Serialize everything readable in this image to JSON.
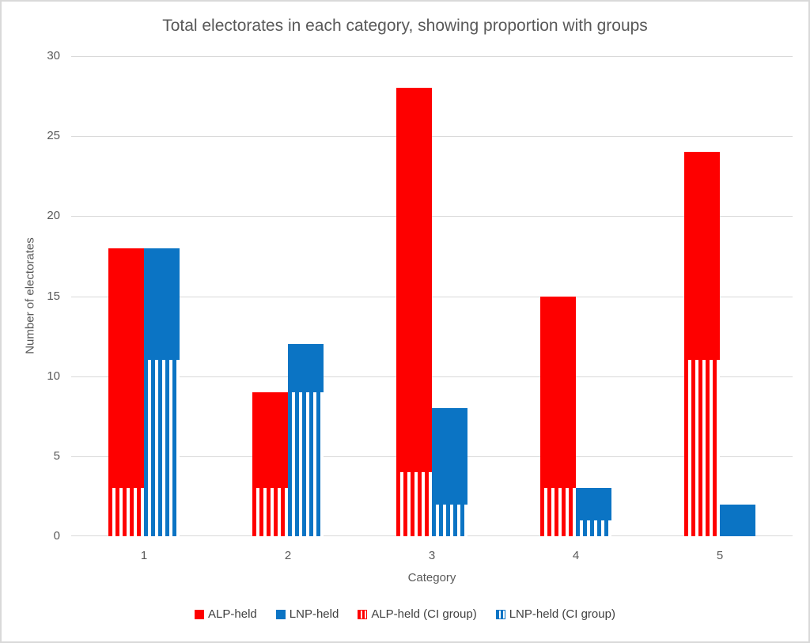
{
  "chart_data": {
    "type": "bar",
    "title": "Total electorates in each category, showing proportion with groups",
    "xlabel": "Category",
    "ylabel": "Number of electorates",
    "categories": [
      "1",
      "2",
      "3",
      "4",
      "5"
    ],
    "series": [
      {
        "name": "ALP-held",
        "style": "solid",
        "color": "#fe0000",
        "values": [
          18,
          9,
          28,
          15,
          24
        ]
      },
      {
        "name": "LNP-held",
        "style": "solid",
        "color": "#0b74c4",
        "values": [
          18,
          12,
          8,
          3,
          2
        ]
      },
      {
        "name": "ALP-held (CI group)",
        "style": "vertical-stripes",
        "color": "#fe0000",
        "overlay_of": "ALP-held",
        "values": [
          3,
          3,
          4,
          3,
          11
        ]
      },
      {
        "name": "LNP-held (CI group)",
        "style": "vertical-stripes",
        "color": "#0b74c4",
        "overlay_of": "LNP-held",
        "values": [
          11,
          9,
          2,
          1,
          0
        ]
      }
    ],
    "ylim": [
      0,
      30
    ],
    "yticks": [
      0,
      5,
      10,
      15,
      20,
      25,
      30
    ],
    "grid": true,
    "legend_position": "bottom",
    "gridline_color": "#d9d9d9"
  }
}
